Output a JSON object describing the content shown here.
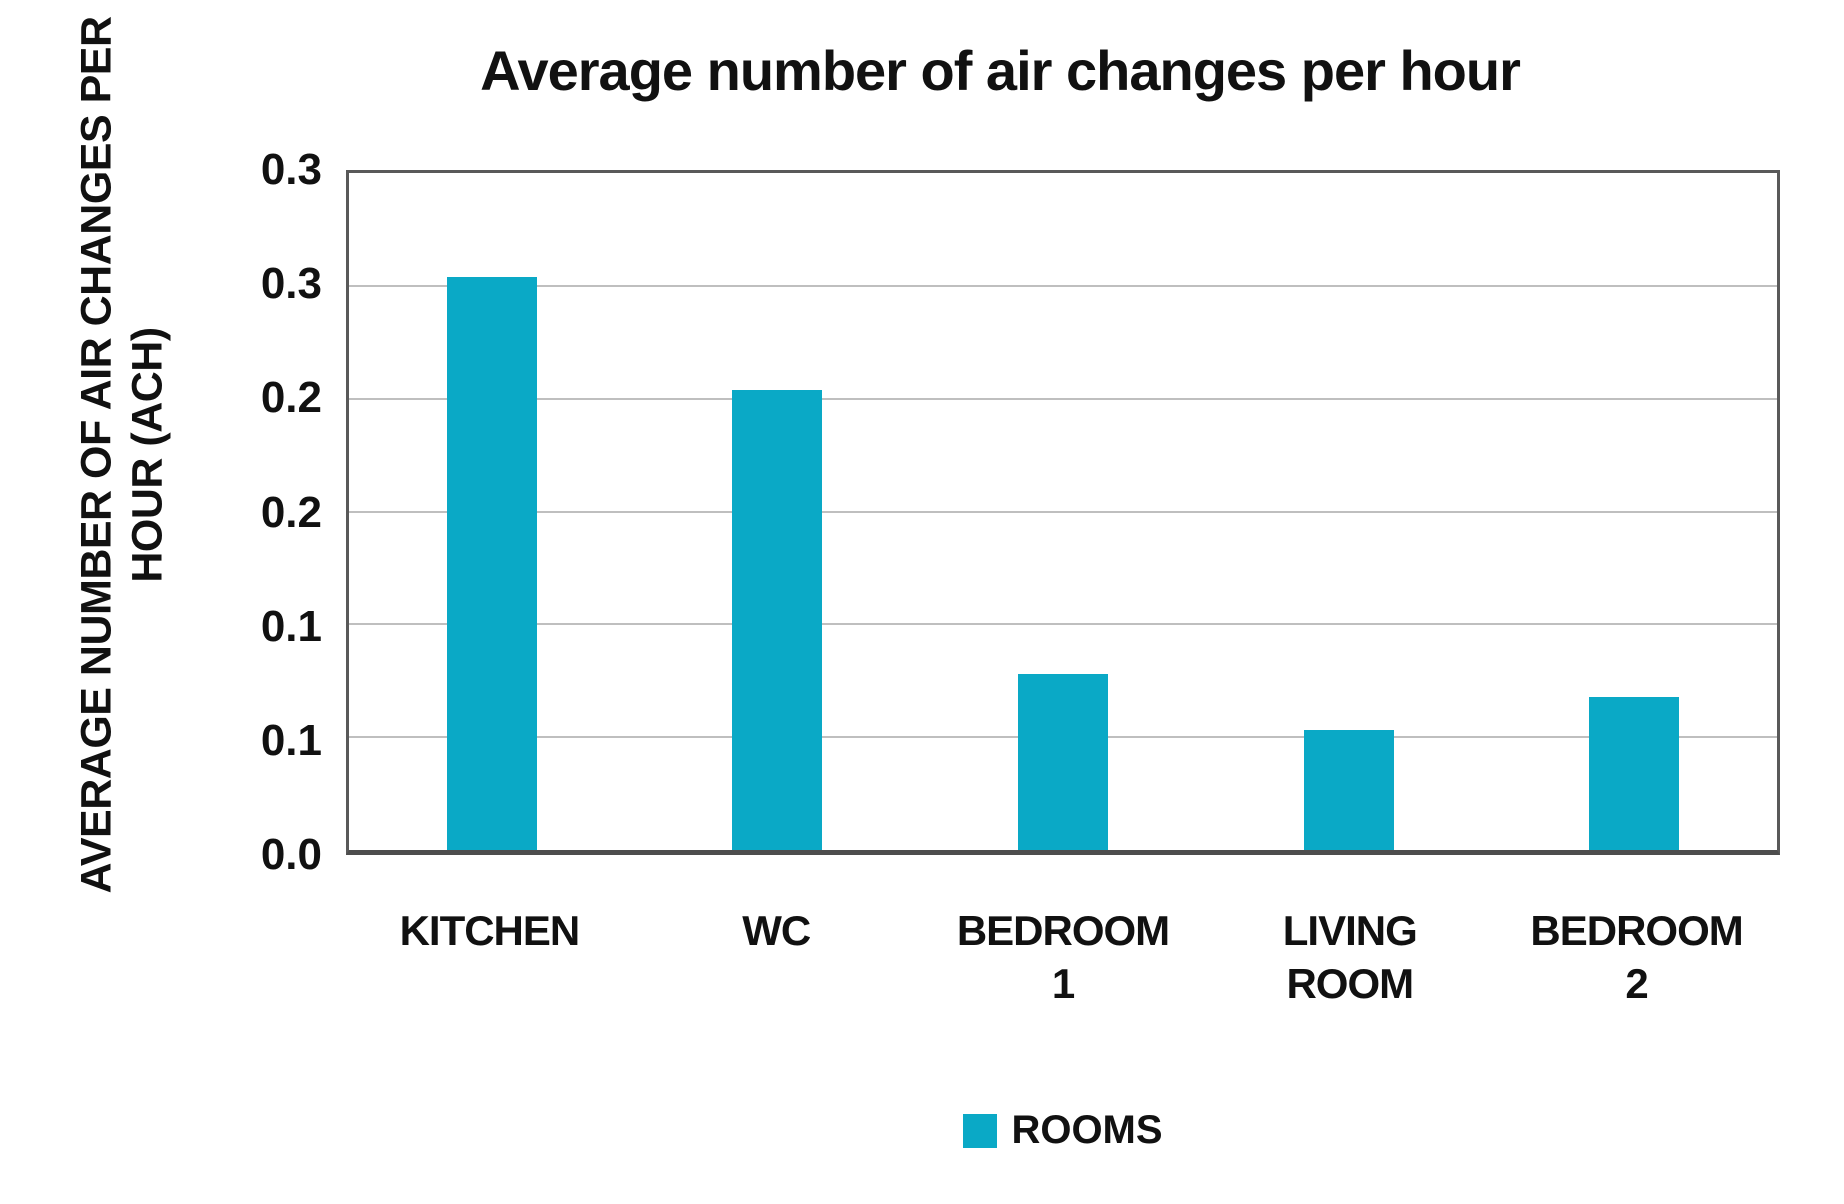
{
  "title": "Average number of air changes per hour",
  "y_axis": {
    "title_line1": "AVERAGE NUMBER OF AIR CHANGES PER",
    "title_line2": "HOUR (ACH)",
    "tick_labels": [
      "0.3",
      "0.3",
      "0.2",
      "0.2",
      "0.1",
      "0.1",
      "0.0"
    ]
  },
  "legend": {
    "label": "ROOMS",
    "swatch_color": "#0aa9c6"
  },
  "chart_data": {
    "type": "bar",
    "title": "Average number of air changes per hour",
    "categories": [
      "KITCHEN",
      "WC",
      "BEDROOM 1",
      "LIVING ROOM",
      "BEDROOM 2"
    ],
    "category_display": [
      "KITCHEN",
      "WC",
      "BEDROOM\n1",
      "LIVING\nROOM",
      "BEDROOM\n2"
    ],
    "values": [
      0.254,
      0.204,
      0.078,
      0.053,
      0.068
    ],
    "series_name": "ROOMS",
    "xlabel": "",
    "ylabel": "AVERAGE NUMBER OF AIR CHANGES PER HOUR (ACH)",
    "ylim": [
      0,
      0.3
    ],
    "tick_step": 0.05,
    "tick_label_decimals": 1,
    "grid": true,
    "legend_position": "bottom",
    "bar_color": "#0aa9c6",
    "gridline_color": "#bfbfbf",
    "axis_color": "#595959"
  }
}
